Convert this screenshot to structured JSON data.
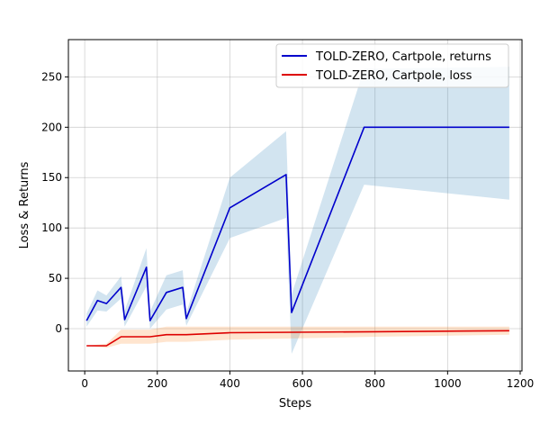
{
  "chart_data": {
    "type": "line",
    "title": "",
    "xlabel": "Steps",
    "ylabel": "Loss & Returns",
    "xlim": [
      -45,
      1205
    ],
    "ylim": [
      -42,
      287
    ],
    "xticks": [
      0,
      200,
      400,
      600,
      800,
      1000,
      1200
    ],
    "xtick_labels": [
      "0",
      "200",
      "400",
      "600",
      "800",
      "1000",
      "1200"
    ],
    "yticks": [
      0,
      50,
      100,
      150,
      200,
      250
    ],
    "ytick_labels": [
      "0",
      "50",
      "100",
      "150",
      "200",
      "250"
    ],
    "grid": true,
    "legend_position": "top-right",
    "series": [
      {
        "name": "TOLD-ZERO, Cartpole, returns",
        "color": "#0000cc",
        "band_color": "#1f77b4",
        "x": [
          5,
          35,
          60,
          100,
          110,
          170,
          180,
          225,
          270,
          280,
          400,
          555,
          570,
          770,
          1170
        ],
        "y": [
          8,
          28,
          25,
          41,
          9,
          61,
          8,
          36,
          41,
          10,
          120,
          153,
          16,
          200,
          200
        ],
        "upper": [
          15,
          38,
          33,
          52,
          18,
          80,
          17,
          53,
          58,
          16,
          150,
          196,
          34,
          258,
          260
        ],
        "lower": [
          2,
          18,
          17,
          30,
          2,
          42,
          0,
          19,
          24,
          3,
          90,
          110,
          -25,
          143,
          128
        ]
      },
      {
        "name": "TOLD-ZERO, Cartpole, loss",
        "color": "#dd0000",
        "band_color": "#ff7f0e",
        "x": [
          5,
          60,
          100,
          180,
          225,
          280,
          400,
          800,
          1170
        ],
        "y": [
          -17,
          -17,
          -8,
          -8,
          -6,
          -6,
          -4,
          -3,
          -2
        ],
        "upper": [
          -17,
          -15,
          -1,
          -1,
          2,
          2,
          2,
          2,
          2
        ],
        "lower": [
          -17,
          -19,
          -15,
          -15,
          -13,
          -13,
          -11,
          -8,
          -6
        ]
      }
    ]
  }
}
